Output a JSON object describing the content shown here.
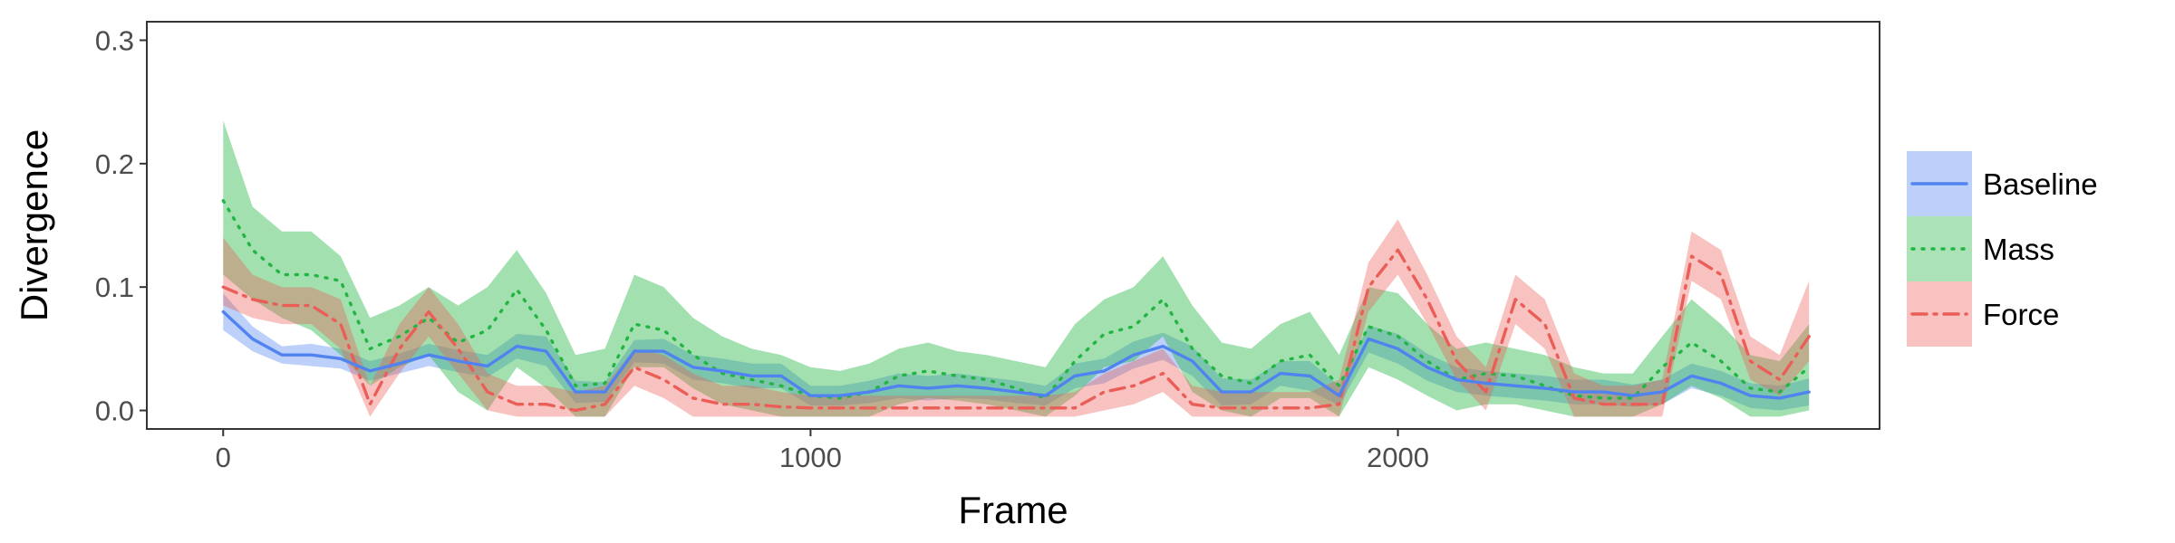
{
  "chart_data": {
    "type": "line",
    "title": "",
    "xlabel": "Frame",
    "ylabel": "Divergence",
    "xlim": [
      -130,
      2820
    ],
    "ylim": [
      -0.015,
      0.315
    ],
    "x_ticks": [
      0,
      1000,
      2000
    ],
    "y_ticks": [
      0.0,
      0.1,
      0.2,
      0.3
    ],
    "x_tick_labels": [
      "0",
      "1000",
      "2000"
    ],
    "y_tick_labels": [
      "0.0",
      "0.1",
      "0.2",
      "0.3"
    ],
    "grid": false,
    "legend_position": "right",
    "x": [
      0,
      50,
      100,
      150,
      200,
      250,
      300,
      350,
      400,
      450,
      500,
      550,
      600,
      650,
      700,
      750,
      800,
      850,
      900,
      950,
      1000,
      1050,
      1100,
      1150,
      1200,
      1250,
      1300,
      1350,
      1400,
      1450,
      1500,
      1550,
      1600,
      1650,
      1700,
      1750,
      1800,
      1850,
      1900,
      1950,
      2000,
      2050,
      2100,
      2150,
      2200,
      2250,
      2300,
      2350,
      2400,
      2450,
      2500,
      2550,
      2600,
      2650,
      2700
    ],
    "series": [
      {
        "name": "Baseline",
        "color": "#5083f0",
        "line_style": "solid",
        "values": [
          0.08,
          0.058,
          0.045,
          0.045,
          0.042,
          0.032,
          0.038,
          0.045,
          0.04,
          0.036,
          0.052,
          0.048,
          0.015,
          0.015,
          0.048,
          0.048,
          0.035,
          0.032,
          0.028,
          0.028,
          0.012,
          0.012,
          0.015,
          0.02,
          0.018,
          0.02,
          0.018,
          0.015,
          0.012,
          0.028,
          0.032,
          0.045,
          0.052,
          0.04,
          0.015,
          0.015,
          0.03,
          0.028,
          0.012,
          0.058,
          0.05,
          0.035,
          0.025,
          0.022,
          0.02,
          0.018,
          0.015,
          0.015,
          0.012,
          0.015,
          0.028,
          0.022,
          0.012,
          0.01,
          0.015
        ],
        "lower": [
          0.065,
          0.048,
          0.038,
          0.036,
          0.034,
          0.024,
          0.03,
          0.036,
          0.031,
          0.027,
          0.042,
          0.036,
          0.006,
          0.007,
          0.039,
          0.038,
          0.025,
          0.022,
          0.018,
          0.018,
          0.004,
          0.004,
          0.006,
          0.01,
          0.008,
          0.01,
          0.009,
          0.006,
          0.004,
          0.018,
          0.022,
          0.034,
          0.041,
          0.028,
          0.004,
          0.005,
          0.02,
          0.016,
          0.004,
          0.047,
          0.038,
          0.024,
          0.015,
          0.012,
          0.01,
          0.008,
          0.005,
          0.005,
          0.003,
          0.005,
          0.018,
          0.012,
          0.002,
          0.0,
          0.004
        ],
        "upper": [
          0.095,
          0.068,
          0.052,
          0.054,
          0.05,
          0.04,
          0.046,
          0.054,
          0.049,
          0.045,
          0.062,
          0.06,
          0.024,
          0.023,
          0.057,
          0.058,
          0.045,
          0.042,
          0.038,
          0.038,
          0.02,
          0.02,
          0.024,
          0.03,
          0.028,
          0.03,
          0.027,
          0.024,
          0.02,
          0.038,
          0.042,
          0.056,
          0.063,
          0.052,
          0.026,
          0.025,
          0.04,
          0.04,
          0.02,
          0.069,
          0.062,
          0.046,
          0.035,
          0.032,
          0.03,
          0.028,
          0.025,
          0.025,
          0.021,
          0.025,
          0.038,
          0.032,
          0.022,
          0.02,
          0.026
        ]
      },
      {
        "name": "Mass",
        "color": "#22b543",
        "line_style": "dotted",
        "values": [
          0.17,
          0.13,
          0.11,
          0.11,
          0.105,
          0.05,
          0.06,
          0.075,
          0.055,
          0.065,
          0.098,
          0.065,
          0.02,
          0.022,
          0.07,
          0.065,
          0.045,
          0.03,
          0.025,
          0.02,
          0.012,
          0.01,
          0.015,
          0.028,
          0.032,
          0.028,
          0.025,
          0.018,
          0.01,
          0.04,
          0.062,
          0.068,
          0.09,
          0.05,
          0.028,
          0.022,
          0.04,
          0.045,
          0.02,
          0.068,
          0.06,
          0.04,
          0.025,
          0.03,
          0.028,
          0.02,
          0.012,
          0.01,
          0.01,
          0.035,
          0.055,
          0.04,
          0.018,
          0.015,
          0.035
        ],
        "lower": [
          0.11,
          0.09,
          0.075,
          0.065,
          0.045,
          0.02,
          0.035,
          0.045,
          0.015,
          0.0,
          0.035,
          0.018,
          -0.005,
          -0.005,
          0.035,
          0.035,
          0.018,
          0.005,
          0.0,
          -0.005,
          -0.005,
          -0.005,
          -0.005,
          0.005,
          0.01,
          0.008,
          0.005,
          0.0,
          -0.005,
          0.012,
          0.035,
          0.04,
          0.06,
          0.015,
          0.0,
          -0.005,
          0.01,
          0.01,
          -0.005,
          0.035,
          0.025,
          0.012,
          0.0,
          0.005,
          0.005,
          0.0,
          -0.005,
          -0.005,
          -0.005,
          0.005,
          0.02,
          0.01,
          -0.005,
          -0.005,
          0.0
        ],
        "upper": [
          0.235,
          0.165,
          0.145,
          0.145,
          0.125,
          0.075,
          0.085,
          0.1,
          0.085,
          0.1,
          0.13,
          0.095,
          0.045,
          0.05,
          0.11,
          0.1,
          0.075,
          0.06,
          0.05,
          0.045,
          0.035,
          0.032,
          0.038,
          0.05,
          0.055,
          0.048,
          0.045,
          0.04,
          0.035,
          0.07,
          0.09,
          0.1,
          0.125,
          0.085,
          0.055,
          0.05,
          0.07,
          0.08,
          0.045,
          0.1,
          0.095,
          0.07,
          0.05,
          0.055,
          0.05,
          0.045,
          0.035,
          0.03,
          0.03,
          0.06,
          0.09,
          0.07,
          0.045,
          0.04,
          0.07
        ]
      },
      {
        "name": "Force",
        "color": "#ea5e57",
        "line_style": "dashdot",
        "values": [
          0.1,
          0.09,
          0.085,
          0.085,
          0.07,
          0.005,
          0.05,
          0.08,
          0.05,
          0.015,
          0.005,
          0.005,
          0.0,
          0.005,
          0.035,
          0.025,
          0.01,
          0.005,
          0.005,
          0.003,
          0.002,
          0.002,
          0.002,
          0.002,
          0.002,
          0.002,
          0.002,
          0.002,
          0.002,
          0.002,
          0.015,
          0.02,
          0.03,
          0.005,
          0.002,
          0.002,
          0.002,
          0.002,
          0.005,
          0.1,
          0.13,
          0.09,
          0.04,
          0.015,
          0.09,
          0.07,
          0.01,
          0.005,
          0.005,
          0.005,
          0.125,
          0.11,
          0.04,
          0.025,
          0.06
        ],
        "lower": [
          0.085,
          0.075,
          0.07,
          0.07,
          0.05,
          -0.005,
          0.03,
          0.06,
          0.03,
          0.0,
          -0.005,
          -0.005,
          -0.005,
          -0.005,
          0.02,
          0.01,
          -0.005,
          -0.005,
          -0.005,
          -0.005,
          -0.005,
          -0.005,
          -0.005,
          -0.005,
          -0.005,
          -0.005,
          -0.005,
          -0.005,
          -0.005,
          -0.005,
          0.0,
          0.005,
          0.015,
          -0.005,
          -0.005,
          -0.005,
          -0.005,
          -0.005,
          -0.005,
          0.08,
          0.11,
          0.07,
          0.025,
          0.0,
          0.07,
          0.05,
          -0.005,
          -0.005,
          -0.005,
          -0.005,
          0.105,
          0.09,
          0.025,
          0.012,
          0.04
        ],
        "upper": [
          0.14,
          0.11,
          0.1,
          0.1,
          0.09,
          0.02,
          0.07,
          0.1,
          0.07,
          0.03,
          0.02,
          0.02,
          0.015,
          0.02,
          0.05,
          0.045,
          0.03,
          0.02,
          0.02,
          0.015,
          0.012,
          0.012,
          0.012,
          0.012,
          0.012,
          0.012,
          0.012,
          0.012,
          0.012,
          0.015,
          0.03,
          0.04,
          0.05,
          0.02,
          0.015,
          0.015,
          0.015,
          0.015,
          0.025,
          0.12,
          0.155,
          0.11,
          0.06,
          0.035,
          0.11,
          0.09,
          0.03,
          0.02,
          0.02,
          0.025,
          0.145,
          0.13,
          0.06,
          0.045,
          0.105
        ]
      }
    ]
  }
}
